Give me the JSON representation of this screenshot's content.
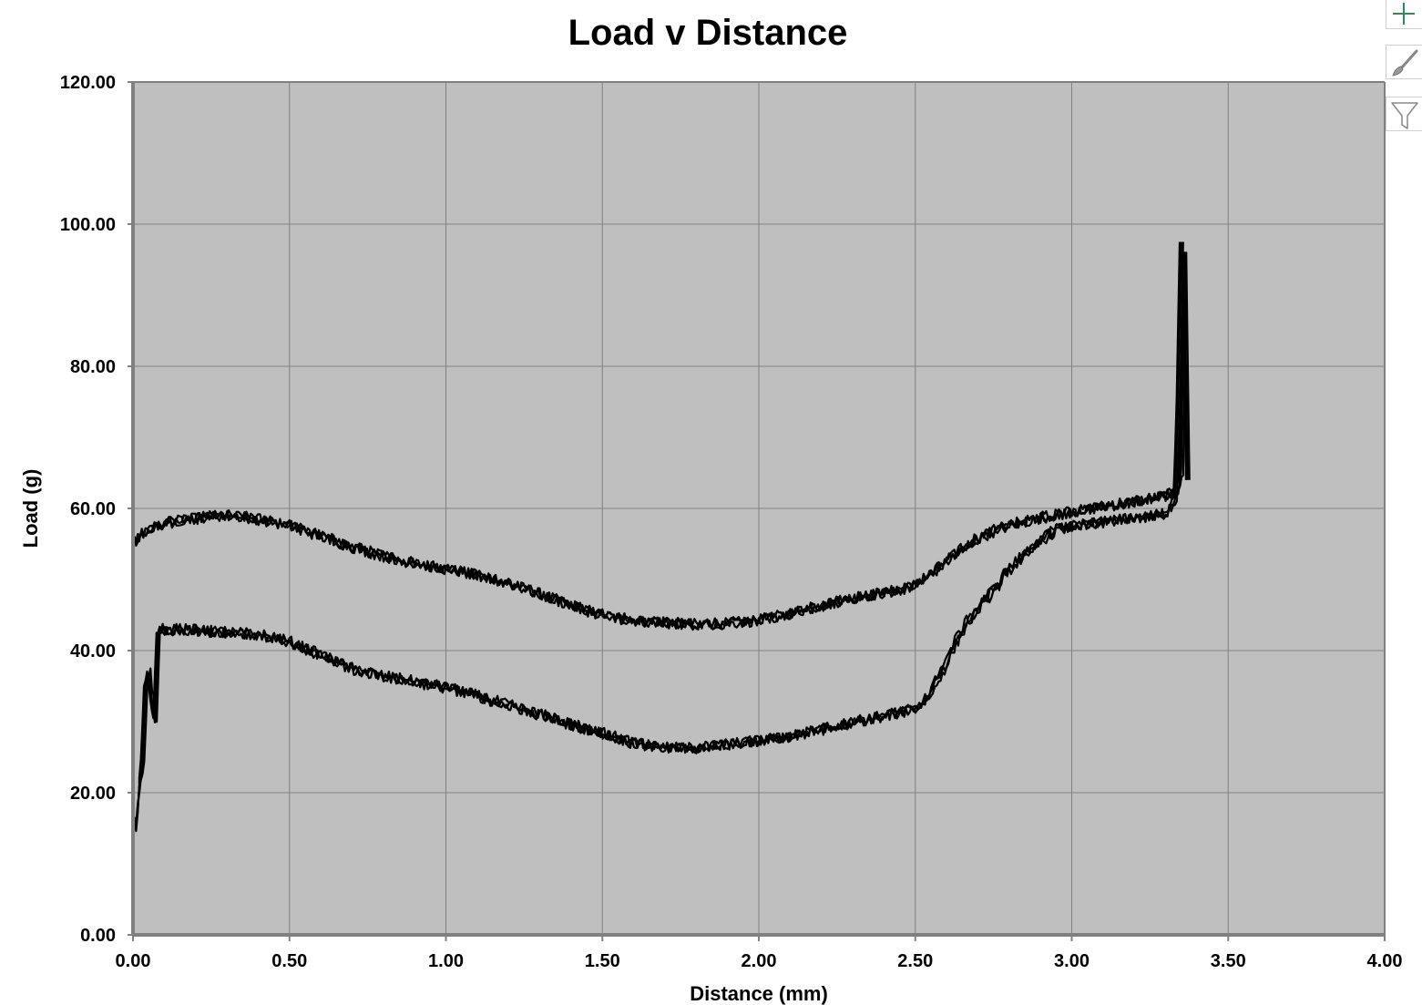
{
  "chart_data": {
    "type": "line",
    "title": "Load v Distance",
    "xlabel": "Distance (mm)",
    "ylabel": "Load (g)",
    "xlim": [
      0,
      4
    ],
    "ylim": [
      0,
      120
    ],
    "x_ticks": [
      "0.00",
      "0.50",
      "1.00",
      "1.50",
      "2.00",
      "2.50",
      "3.00",
      "3.50",
      "4.00"
    ],
    "y_ticks": [
      "0.00",
      "20.00",
      "40.00",
      "60.00",
      "80.00",
      "100.00",
      "120.00"
    ],
    "grid": true,
    "legend": false,
    "plot_background": "#bfbfbf",
    "line_color": "#000000",
    "series": [
      {
        "x": [
          0.0,
          0.005,
          0.01,
          0.02,
          0.04,
          0.06,
          0.08,
          0.1,
          0.15,
          0.2,
          0.25,
          0.3,
          0.35,
          0.4,
          0.45,
          0.5,
          0.6,
          0.7,
          0.8,
          0.9,
          1.0,
          1.1,
          1.2,
          1.3,
          1.4,
          1.5,
          1.6,
          1.7,
          1.8,
          1.9,
          2.0,
          2.1,
          2.2,
          2.3,
          2.4,
          2.5,
          2.55,
          2.6,
          2.65,
          2.7,
          2.75,
          2.8,
          2.9,
          3.0,
          3.1,
          3.2,
          3.3,
          3.34,
          3.35,
          3.36,
          3.37
        ],
        "y": [
          54.8,
          55.5,
          55.2,
          56.0,
          56.6,
          57.2,
          57.5,
          57.9,
          58.3,
          58.6,
          58.9,
          59.0,
          58.8,
          58.5,
          58.1,
          57.6,
          56.1,
          54.6,
          53.3,
          52.3,
          51.5,
          50.6,
          49.5,
          48.0,
          46.4,
          45.0,
          44.2,
          43.9,
          43.7,
          43.8,
          44.3,
          45.2,
          46.3,
          47.4,
          48.1,
          49.2,
          50.8,
          52.6,
          54.3,
          55.8,
          56.8,
          57.6,
          58.7,
          59.5,
          60.2,
          61.0,
          61.8,
          62.5,
          65.0,
          96.0,
          64.0
        ]
      },
      {
        "x": [
          0.0,
          0.01,
          0.02,
          0.03,
          0.04,
          0.05,
          0.06,
          0.07,
          0.08,
          0.09,
          0.1,
          0.15,
          0.2,
          0.25,
          0.3,
          0.35,
          0.4,
          0.45,
          0.5,
          0.6,
          0.7,
          0.8,
          0.9,
          1.0,
          1.1,
          1.2,
          1.3,
          1.4,
          1.5,
          1.6,
          1.7,
          1.8,
          1.9,
          2.0,
          2.1,
          2.2,
          2.3,
          2.4,
          2.5,
          2.55,
          2.6,
          2.65,
          2.7,
          2.75,
          2.8,
          2.85,
          2.9,
          2.95,
          3.0,
          3.1,
          3.2,
          3.3,
          3.33,
          3.34,
          3.35
        ],
        "y": [
          16.5,
          15.0,
          20.5,
          24.0,
          35.0,
          37.0,
          33.0,
          30.5,
          42.5,
          43.2,
          42.8,
          43.0,
          42.9,
          42.7,
          42.6,
          42.4,
          42.3,
          41.8,
          41.2,
          39.3,
          37.4,
          36.4,
          35.6,
          34.8,
          33.6,
          32.3,
          31.0,
          29.6,
          28.4,
          27.0,
          26.3,
          26.3,
          26.8,
          27.3,
          27.9,
          28.9,
          29.9,
          30.8,
          31.8,
          34.0,
          38.5,
          43.0,
          46.0,
          48.5,
          51.5,
          53.5,
          55.5,
          57.0,
          57.5,
          58.1,
          58.6,
          59.3,
          60.8,
          75.0,
          97.5
        ]
      }
    ]
  }
}
